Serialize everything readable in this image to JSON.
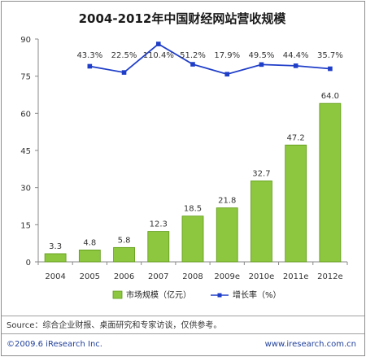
{
  "title": "2004-2012年中国财经网站营收规模",
  "legend": {
    "bar_label": "市场规模（亿元）",
    "line_label": "增长率（%）"
  },
  "source": "Source：综合企业财报、桌面研究和专家访谈，仅供参考。",
  "footer": {
    "copyright": "©2009.6 iResearch Inc.",
    "website": "www.iresearch.com.cn"
  },
  "colors": {
    "bar": "#8dc63f",
    "bar_dark": "#5f9a16",
    "line": "#1f3ec8",
    "axis": "#888888"
  },
  "chart_data": {
    "type": "bar",
    "categories": [
      "2004",
      "2005",
      "2006",
      "2007",
      "2008",
      "2009e",
      "2010e",
      "2011e",
      "2012e"
    ],
    "series": [
      {
        "name": "市场规模（亿元）",
        "type": "bar",
        "values": [
          3.3,
          4.8,
          5.8,
          12.3,
          18.5,
          21.8,
          32.7,
          47.2,
          64.0
        ],
        "labels": [
          "3.3",
          "4.8",
          "5.8",
          "12.3",
          "18.5",
          "21.8",
          "32.7",
          "47.2",
          "64.0"
        ]
      },
      {
        "name": "增长率（%）",
        "type": "line",
        "values": [
          null,
          43.3,
          22.5,
          110.4,
          51.2,
          17.9,
          49.5,
          44.4,
          35.7
        ],
        "labels": [
          "",
          "43.3%",
          "22.5%",
          "110.4%",
          "51.2%",
          "17.9%",
          "49.5%",
          "44.4%",
          "35.7%"
        ],
        "drawn_at": [
          null,
          79,
          76.5,
          88,
          79.8,
          75.8,
          79.7,
          79.2,
          78
        ]
      }
    ],
    "yticks": [
      "0",
      "15",
      "30",
      "45",
      "60",
      "75",
      "90"
    ],
    "ylim": [
      0,
      90
    ],
    "grid": false,
    "legend_position": "bottom"
  }
}
